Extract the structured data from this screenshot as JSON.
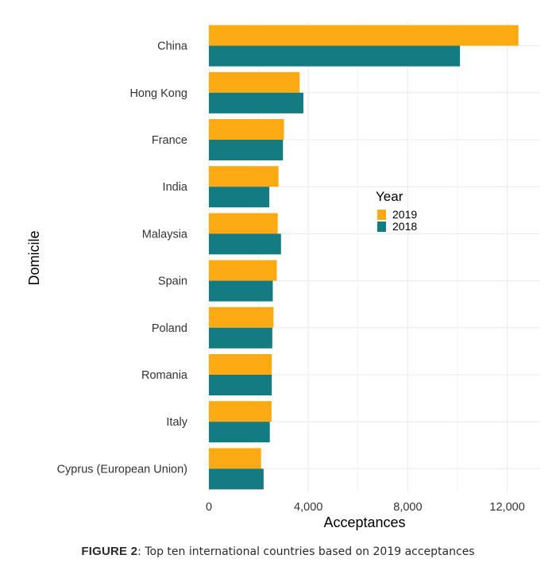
{
  "chart_data": {
    "type": "bar",
    "orientation": "horizontal",
    "categories": [
      "China",
      "Hong Kong",
      "France",
      "India",
      "Malaysia",
      "Spain",
      "Poland",
      "Romania",
      "Italy",
      "Cyprus (European Union)"
    ],
    "series": [
      {
        "name": "2019",
        "color": "#FBAA14",
        "values": [
          12450,
          3650,
          3020,
          2800,
          2770,
          2730,
          2600,
          2530,
          2520,
          2100
        ]
      },
      {
        "name": "2018",
        "color": "#137B82",
        "values": [
          10100,
          3800,
          2980,
          2430,
          2900,
          2570,
          2550,
          2530,
          2450,
          2200
        ]
      }
    ],
    "xlabel": "Acceptances",
    "ylabel": "Domicile",
    "xlim": [
      0,
      13000
    ],
    "xticks": [
      0,
      4000,
      8000,
      12000
    ],
    "xtick_labels": [
      "0",
      "4,000",
      "8,000",
      "12,000"
    ],
    "grid": true,
    "legend": {
      "title": "Year",
      "placement": "right-middle inside plot"
    }
  },
  "caption": {
    "figure_label": "FIGURE 2",
    "text": ": Top ten international countries based on 2019 acceptances"
  }
}
